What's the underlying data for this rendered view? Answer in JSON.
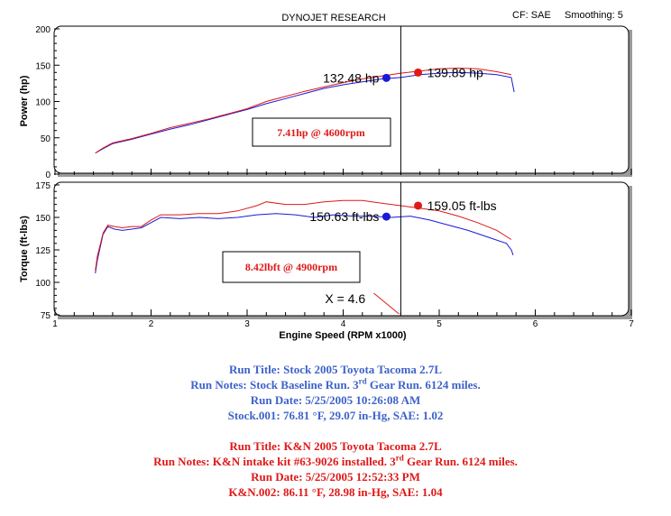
{
  "header": {
    "title": "DYNOJET RESEARCH",
    "cf_label": "CF: SAE",
    "smoothing_label": "Smoothing: 5"
  },
  "colors": {
    "stock": "#1a1ad6",
    "kn": "#e01818",
    "notes_blue": "#3d63c9",
    "notes_red": "#e01818"
  },
  "chart_data": [
    {
      "type": "line",
      "ylabel": "Power (hp)",
      "ylim": [
        0,
        200
      ],
      "yticks": [
        "0",
        "50",
        "100",
        "150",
        "200"
      ],
      "xlim": [
        1,
        7
      ],
      "grid": false,
      "marker_x": 4.6,
      "series": [
        {
          "name": "Stock",
          "color": "#1a1ad6",
          "x": [
            1.42,
            1.5,
            1.6,
            1.8,
            2.0,
            2.2,
            2.4,
            2.6,
            2.8,
            3.0,
            3.2,
            3.4,
            3.6,
            3.8,
            4.0,
            4.2,
            4.4,
            4.6,
            4.8,
            5.0,
            5.2,
            5.4,
            5.6,
            5.75,
            5.78
          ],
          "y": [
            29,
            35,
            42,
            48,
            55,
            62,
            68,
            75,
            82,
            89,
            97,
            104,
            111,
            118,
            123,
            127,
            131,
            133,
            137,
            139,
            140,
            139,
            137,
            133,
            113
          ]
        },
        {
          "name": "K&N",
          "color": "#e01818",
          "x": [
            1.42,
            1.5,
            1.6,
            1.8,
            2.0,
            2.2,
            2.4,
            2.6,
            2.8,
            3.0,
            3.2,
            3.4,
            3.6,
            3.8,
            4.0,
            4.2,
            4.4,
            4.6,
            4.8,
            5.0,
            5.2,
            5.4,
            5.6,
            5.75
          ],
          "y": [
            29,
            36,
            43,
            49,
            56,
            64,
            70,
            76,
            83,
            90,
            100,
            107,
            114,
            120,
            126,
            131,
            135,
            139,
            142,
            145,
            146,
            145,
            141,
            137
          ]
        }
      ],
      "cursor_labels": [
        {
          "series": "Stock",
          "text": "132.48 hp",
          "x": 4.45,
          "y": 132.48
        },
        {
          "series": "K&N",
          "text": "139.89 hp",
          "x": 4.78,
          "y": 139.89
        }
      ],
      "annotation": "7.41hp @ 4600rpm"
    },
    {
      "type": "line",
      "ylabel": "Torque (ft-lbs)",
      "xlabel": "Engine Speed (RPM x1000)",
      "ylim": [
        75,
        175
      ],
      "yticks": [
        "75",
        "100",
        "125",
        "150",
        "175"
      ],
      "xlim": [
        1,
        7
      ],
      "xticks": [
        "1",
        "2",
        "3",
        "4",
        "5",
        "6",
        "7"
      ],
      "grid": false,
      "marker_x": 4.6,
      "series": [
        {
          "name": "Stock",
          "color": "#1a1ad6",
          "x": [
            1.42,
            1.44,
            1.5,
            1.55,
            1.62,
            1.7,
            1.8,
            1.9,
            2.0,
            2.1,
            2.3,
            2.5,
            2.7,
            2.9,
            3.1,
            3.3,
            3.5,
            3.7,
            3.9,
            4.1,
            4.3,
            4.5,
            4.7,
            4.9,
            5.1,
            5.3,
            5.5,
            5.7,
            5.75,
            5.77
          ],
          "y": [
            107,
            117,
            137,
            143,
            141,
            140,
            141,
            142,
            146,
            150,
            149,
            150,
            149,
            150,
            152,
            153,
            152,
            150,
            152,
            151,
            151,
            150,
            151,
            148,
            144,
            140,
            135,
            130,
            125,
            121
          ]
        },
        {
          "name": "K&N",
          "color": "#e01818",
          "x": [
            1.42,
            1.44,
            1.5,
            1.55,
            1.62,
            1.7,
            1.8,
            1.9,
            2.0,
            2.1,
            2.3,
            2.5,
            2.7,
            2.9,
            3.1,
            3.2,
            3.4,
            3.6,
            3.8,
            4.0,
            4.2,
            4.4,
            4.6,
            4.8,
            5.0,
            5.2,
            5.4,
            5.6,
            5.75
          ],
          "y": [
            109,
            120,
            138,
            144,
            143,
            142,
            143,
            143,
            148,
            152,
            152,
            153,
            153,
            155,
            159,
            162,
            160,
            160,
            162,
            163,
            163,
            161,
            159,
            157,
            155,
            151,
            146,
            140,
            133
          ]
        }
      ],
      "cursor_labels": [
        {
          "series": "Stock",
          "text": "150.63 ft-lbs",
          "x": 4.45,
          "y": 150.63
        },
        {
          "series": "K&N",
          "text": "159.05 ft-lbs",
          "x": 4.78,
          "y": 159.05
        }
      ],
      "cursor_readout": "X = 4.6",
      "annotation": "8.42lbft @ 4900rpm"
    }
  ],
  "notes": {
    "stock": {
      "run_title": "Run Title: Stock 2005 Toyota Tacoma 2.7L",
      "run_notes_pre": "Run Notes: Stock Baseline Run. 3",
      "run_notes_sup": "rd",
      "run_notes_post": " Gear Run. 6124 miles.",
      "run_date": "Run Date: 5/25/2005 10:26:08 AM",
      "conditions": "Stock.001: 76.81 °F, 29.07 in-Hg, SAE: 1.02"
    },
    "kn": {
      "run_title": "Run Title: K&N 2005 Toyota Tacoma 2.7L",
      "run_notes_pre": "Run Notes: K&N intake kit #63-9026 installed. 3",
      "run_notes_sup": "rd",
      "run_notes_post": " Gear Run. 6124 miles.",
      "run_date": "Run Date: 5/25/2005 12:52:33 PM",
      "conditions": "K&N.002: 86.11 °F, 28.98 in-Hg, SAE: 1.04"
    }
  }
}
